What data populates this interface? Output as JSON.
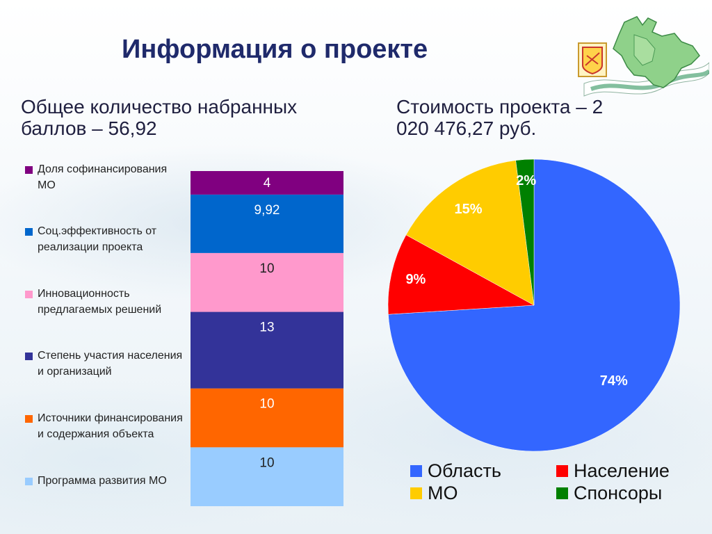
{
  "title": "Информация о проекте",
  "left_subtitle": "Общее количество набранных баллов – 56,92",
  "right_subtitle": "Стоимость проекта – 2 020 476,27 руб.",
  "chart_data": [
    {
      "type": "bar",
      "stacked": true,
      "total": 56.92,
      "series": [
        {
          "name": "Программа развития МО",
          "value": 10,
          "label": "10",
          "color": "#99ccff"
        },
        {
          "name": "Источники финансирования и содержания объекта",
          "value": 10,
          "label": "10",
          "color": "#ff6600"
        },
        {
          "name": "Степень участия населения и организаций",
          "value": 13,
          "label": "13",
          "color": "#333399"
        },
        {
          "name": "Инновационность предлагаемых решений",
          "value": 10,
          "label": "10",
          "color": "#ff99cc"
        },
        {
          "name": "Соц.эффективность от реализации проекта",
          "value": 9.92,
          "label": "9,92",
          "color": "#0066cc"
        },
        {
          "name": "Доля софинансирования МО",
          "value": 4,
          "label": "4",
          "color": "#800080"
        }
      ],
      "legend_order": [
        5,
        4,
        3,
        2,
        1,
        0
      ],
      "legend_position": "left"
    },
    {
      "type": "pie",
      "slices": [
        {
          "name": "Область",
          "value": 74,
          "label": "74%",
          "color": "#3366ff"
        },
        {
          "name": "Население",
          "value": 9,
          "label": "9%",
          "color": "#ff0000"
        },
        {
          "name": "МО",
          "value": 15,
          "label": "15%",
          "color": "#ffcc00"
        },
        {
          "name": "Спонсоры",
          "value": 2,
          "label": "2%",
          "color": "#008000"
        }
      ],
      "legend_order": [
        0,
        1,
        2,
        3
      ],
      "legend_position": "bottom"
    }
  ],
  "logo_icon": "kirov-region-map-icon"
}
